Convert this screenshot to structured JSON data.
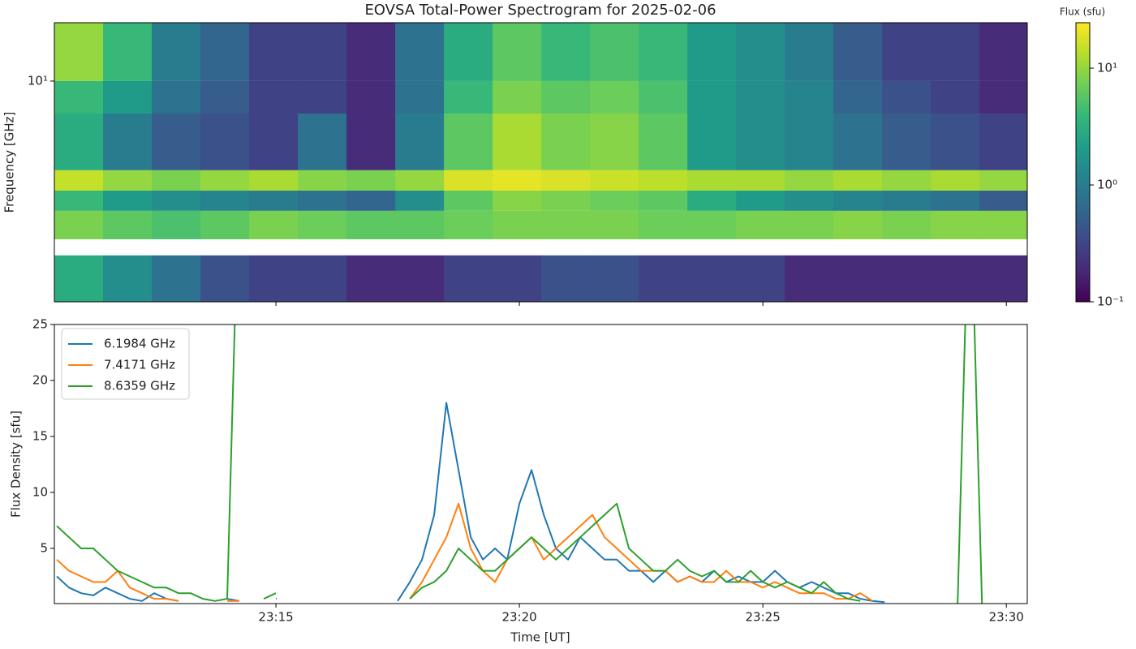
{
  "chart_data": [
    {
      "type": "heatmap",
      "title": "EOVSA Total-Power Spectrogram for 2025-02-06",
      "ylabel": "Frequency [GHz]",
      "xlim": [
        10.45,
        30.43
      ],
      "xticks": [
        15,
        20,
        25,
        30
      ],
      "ylim": [
        1.47,
        16.6
      ],
      "yscale": "log",
      "yticks": [
        {
          "value": 10,
          "label": "10¹"
        }
      ],
      "x_bins": [
        10.45,
        11.45,
        12.45,
        13.45,
        14.45,
        15.45,
        16.45,
        17.45,
        18.45,
        19.45,
        20.45,
        21.45,
        22.45,
        23.45,
        24.45,
        25.45,
        26.45,
        27.45,
        28.45,
        29.45,
        30.43
      ],
      "y_bins": [
        1.47,
        2.2,
        2.53,
        3.24,
        3.86,
        4.61,
        7.54,
        10,
        16.6
      ],
      "z": [
        [
          3,
          1.5,
          0.8,
          0.4,
          0.3,
          0.3,
          0.2,
          0.2,
          0.3,
          0.3,
          0.4,
          0.4,
          0.3,
          0.3,
          0.3,
          0.2,
          0.2,
          0.2,
          0.2,
          0.2
        ],
        [
          null,
          null,
          null,
          null,
          null,
          null,
          null,
          null,
          null,
          null,
          null,
          null,
          null,
          null,
          null,
          null,
          null,
          null,
          null,
          null
        ],
        [
          8,
          6,
          5,
          6,
          8,
          7,
          6,
          6,
          7,
          8,
          8,
          8,
          7,
          7,
          8,
          8,
          9,
          8,
          9,
          9
        ],
        [
          4,
          2,
          1.5,
          1.2,
          1,
          0.8,
          0.6,
          1.5,
          6,
          9,
          8,
          7,
          6,
          3,
          2,
          1.5,
          1.2,
          1,
          0.8,
          0.5
        ],
        [
          15,
          10,
          8,
          10,
          12,
          9,
          8,
          10,
          18,
          20,
          18,
          16,
          14,
          12,
          12,
          10,
          12,
          10,
          12,
          10
        ],
        [
          3,
          1,
          0.5,
          0.4,
          0.3,
          0.8,
          0.2,
          1,
          6,
          12,
          8,
          9,
          6,
          2,
          1.5,
          1.2,
          0.8,
          0.5,
          0.4,
          0.3
        ],
        [
          4,
          2,
          0.8,
          0.5,
          0.3,
          0.3,
          0.2,
          0.8,
          4,
          8,
          6,
          7,
          5,
          2,
          1.5,
          1.2,
          0.6,
          0.4,
          0.3,
          0.2
        ],
        [
          10,
          4,
          1,
          0.6,
          0.3,
          0.3,
          0.2,
          0.8,
          3,
          6,
          4,
          5,
          4,
          2,
          1.5,
          1,
          0.5,
          0.3,
          0.3,
          0.2
        ]
      ],
      "colorbar": {
        "title": "Flux (sfu)",
        "scale": "log",
        "clim": [
          0.1,
          24.5
        ],
        "ticks": [
          {
            "value": 0.1,
            "label": "10⁻¹"
          },
          {
            "value": 1,
            "label": "10⁰"
          },
          {
            "value": 10,
            "label": "10¹"
          }
        ],
        "colormap": [
          "#440154",
          "#482878",
          "#3e4989",
          "#31688e",
          "#26828e",
          "#1f9e89",
          "#35b779",
          "#6ece58",
          "#b5de2b",
          "#fde725"
        ]
      }
    },
    {
      "type": "line",
      "xlabel": "Time [UT]",
      "ylabel": "Flux Density [sfu]",
      "xlim": [
        10.45,
        30.43
      ],
      "xticks": [
        {
          "value": 15,
          "label": "23:15"
        },
        {
          "value": 20,
          "label": "23:20"
        },
        {
          "value": 25,
          "label": "23:25"
        },
        {
          "value": 30,
          "label": "23:30"
        }
      ],
      "ylim": [
        0.07,
        25
      ],
      "yticks": [
        5,
        10,
        15,
        20,
        25
      ],
      "legend": "upper left",
      "x": [
        10.5,
        10.75,
        11,
        11.25,
        11.5,
        11.75,
        12,
        12.25,
        12.5,
        12.75,
        13,
        13.25,
        13.5,
        13.75,
        14,
        14.25,
        14.5,
        14.75,
        15,
        15.25,
        15.5,
        15.75,
        16,
        16.25,
        16.5,
        16.75,
        17,
        17.25,
        17.5,
        17.75,
        18,
        18.25,
        18.5,
        18.75,
        19,
        19.25,
        19.5,
        19.75,
        20,
        20.25,
        20.5,
        20.75,
        21,
        21.25,
        21.5,
        21.75,
        22,
        22.25,
        22.5,
        22.75,
        23,
        23.25,
        23.5,
        23.75,
        24,
        24.25,
        24.5,
        24.75,
        25,
        25.25,
        25.5,
        25.75,
        26,
        26.25,
        26.5,
        26.75,
        27,
        27.25,
        27.5,
        27.75,
        28,
        28.25,
        28.5,
        28.75,
        29,
        29.25,
        29.5
      ],
      "series": [
        {
          "name": "6.1984 GHz",
          "color": "#1f77b4",
          "values": [
            2.5,
            1.5,
            1,
            0.8,
            1.5,
            1,
            0.5,
            0.3,
            1,
            0.5,
            0.3,
            null,
            null,
            null,
            0.5,
            0.3,
            null,
            null,
            0.5,
            null,
            null,
            null,
            null,
            null,
            null,
            null,
            null,
            null,
            0.3,
            2,
            4,
            8,
            18,
            12,
            6,
            4,
            5,
            4,
            9,
            12,
            8,
            5,
            4,
            6,
            5,
            4,
            4,
            3,
            3,
            2,
            3,
            2,
            2.5,
            2,
            3,
            2,
            2.5,
            2,
            2,
            3,
            2,
            1.5,
            2,
            1.5,
            1,
            1,
            0.5,
            0.3,
            0.2,
            null,
            null,
            null,
            null,
            null,
            null,
            null,
            null
          ]
        },
        {
          "name": "7.4171 GHz",
          "color": "#ff7f0e",
          "values": [
            4,
            3,
            2.5,
            2,
            2,
            3,
            1.5,
            1,
            0.5,
            0.5,
            0.3,
            null,
            null,
            null,
            0.3,
            0.3,
            null,
            null,
            null,
            null,
            null,
            null,
            null,
            null,
            null,
            null,
            null,
            null,
            null,
            0.5,
            2,
            4,
            6,
            9,
            5,
            3,
            2,
            4,
            5,
            6,
            4,
            5,
            6,
            7,
            8,
            6,
            5,
            4,
            3,
            3,
            3,
            2,
            2.5,
            2,
            2,
            3,
            2,
            2,
            1.5,
            2,
            1.5,
            1,
            1,
            1,
            0.5,
            0.5,
            1,
            0.3,
            null,
            null,
            null,
            null,
            null,
            null,
            null,
            null,
            null
          ]
        },
        {
          "name": "8.6359 GHz",
          "color": "#2ca02c",
          "values": [
            7,
            6,
            5,
            5,
            4,
            3,
            2.5,
            2,
            1.5,
            1.5,
            1,
            1,
            0.5,
            0.3,
            0.5,
            40,
            null,
            0.5,
            1,
            null,
            null,
            null,
            null,
            null,
            null,
            null,
            null,
            null,
            null,
            0.5,
            1.5,
            2,
            3,
            5,
            4,
            3,
            3,
            4,
            5,
            6,
            5,
            4,
            5,
            6,
            7,
            8,
            9,
            5,
            4,
            3,
            3,
            4,
            3,
            2.5,
            3,
            2,
            2,
            3,
            2,
            1.5,
            2,
            1.5,
            1,
            2,
            1,
            0.5,
            0.3,
            null,
            null,
            null,
            null,
            null,
            null,
            null,
            0.1,
            40,
            0.1
          ]
        }
      ]
    }
  ]
}
